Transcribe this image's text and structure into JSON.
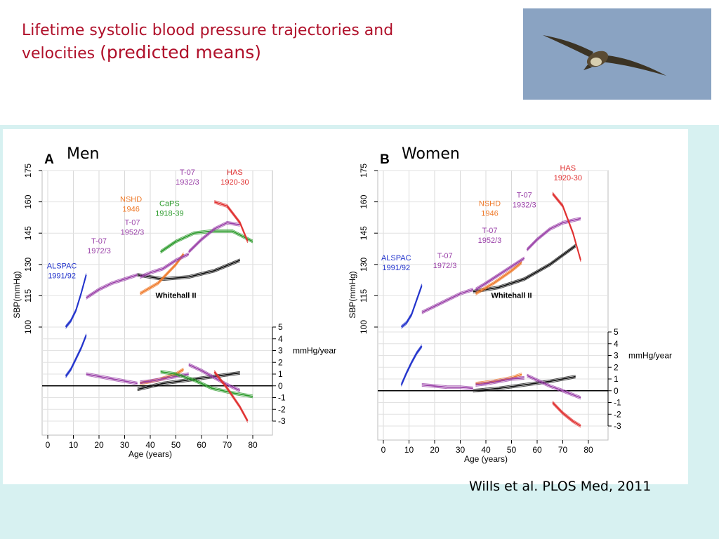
{
  "slide": {
    "title_line1": "Lifetime systolic blood pressure trajectories and",
    "title_line2a": "velocities ",
    "title_line2b": "(predicted means)",
    "header_men": "Men",
    "header_women": "Women",
    "citation": "Wills et al. PLOS Med, 2011",
    "photo_icon": "falcon-in-flight-photo",
    "colors": {
      "title": "#b0102a",
      "band": "#d7f1f1",
      "sky": "#8aa3c2"
    }
  },
  "chart_data": [
    {
      "type": "line",
      "panel_letter": "A",
      "ylabel": "SBP(mmHg)",
      "xlabel": "Age (years)",
      "yticks": [
        "100",
        "115",
        "130",
        "145",
        "160",
        "175"
      ],
      "xticks": [
        "0",
        "10",
        "20",
        "30",
        "40",
        "50",
        "60",
        "70",
        "80"
      ],
      "vel_label": "mmHg/year",
      "vel_ticks": [
        "5",
        "4",
        "3",
        "2",
        "1",
        "0",
        "-1",
        "-2",
        "-3"
      ],
      "xlim": [
        0,
        80
      ],
      "ylim": [
        100,
        175
      ],
      "vlim": [
        -3,
        5
      ],
      "grid": true,
      "whitehall_label": "Whitehall II",
      "series": [
        {
          "name": "ALSPAC",
          "color": "#2233cc",
          "x": [
            7,
            9,
            11,
            13,
            15
          ],
          "sbp": [
            100,
            103,
            108,
            116,
            125
          ],
          "vel": [
            0.8,
            1.4,
            2.3,
            3.2,
            4.3
          ]
        },
        {
          "name": "T-07 1972/3",
          "color": "#9a40a8",
          "x": [
            15,
            20,
            25,
            30,
            35
          ],
          "sbp": [
            114,
            118,
            121,
            123,
            125
          ],
          "vel": [
            1.0,
            0.8,
            0.6,
            0.4,
            0.2
          ]
        },
        {
          "name": "Whitehall II",
          "color": "#111111",
          "x": [
            35,
            45,
            55,
            65,
            75
          ],
          "sbp": [
            125,
            123,
            124,
            127,
            132
          ],
          "vel": [
            -0.3,
            0.2,
            0.5,
            0.8,
            1.1
          ]
        },
        {
          "name": "NSHD 1946",
          "color": "#ef7a2a",
          "x": [
            36,
            43,
            50,
            53
          ],
          "sbp": [
            116,
            121,
            130,
            135
          ],
          "vel": [
            0.2,
            0.5,
            1.0,
            1.4
          ]
        },
        {
          "name": "T-07 1952/3",
          "color": "#9a40a8",
          "x": [
            36,
            40,
            45,
            50,
            55
          ],
          "sbp": [
            124,
            126,
            128,
            132,
            135
          ],
          "vel": [
            0.3,
            0.4,
            0.6,
            0.8,
            1.0
          ]
        },
        {
          "name": "CaPS 1918-39",
          "color": "#2a9a2a",
          "x": [
            44,
            50,
            57,
            64,
            72,
            80
          ],
          "sbp": [
            136,
            141,
            145,
            146,
            146,
            141
          ],
          "vel": [
            1.2,
            1.0,
            0.5,
            -0.2,
            -0.6,
            -0.9
          ]
        },
        {
          "name": "T-07 1932/3",
          "color": "#9a40a8",
          "x": [
            55,
            60,
            65,
            70,
            75
          ],
          "sbp": [
            136,
            142,
            147,
            150,
            149
          ],
          "vel": [
            1.8,
            1.3,
            0.7,
            0.1,
            -0.4
          ]
        },
        {
          "name": "HAS 1920-30",
          "color": "#e03030",
          "x": [
            65,
            70,
            75,
            78
          ],
          "sbp": [
            160,
            158,
            150,
            141
          ],
          "vel": [
            1.2,
            -0.2,
            -1.8,
            -3.0
          ]
        }
      ],
      "labels": [
        {
          "text": [
            "ALSPAC",
            "1991/92"
          ],
          "x": 5.5,
          "sbp": 128,
          "color": "#2233cc"
        },
        {
          "text": [
            "T-07",
            "1972/3"
          ],
          "x": 20,
          "sbp": 140,
          "color": "#9a40a8"
        },
        {
          "text": [
            "NSHD",
            "1946"
          ],
          "x": 32.5,
          "sbp": 160,
          "color": "#ef7a2a"
        },
        {
          "text": [
            "T-07",
            "1952/3"
          ],
          "x": 33,
          "sbp": 149,
          "color": "#9a40a8"
        },
        {
          "text": [
            "CaPS",
            "1918-39"
          ],
          "x": 47.5,
          "sbp": 158,
          "color": "#2a9a2a"
        },
        {
          "text": [
            "T-07",
            "1932/3"
          ],
          "x": 54.5,
          "sbp": 173,
          "color": "#9a40a8"
        },
        {
          "text": [
            "HAS",
            "1920-30"
          ],
          "x": 73,
          "sbp": 173,
          "color": "#e03030"
        }
      ]
    },
    {
      "type": "line",
      "panel_letter": "B",
      "ylabel": "SBP(mmHg)",
      "xlabel": "Age (years)",
      "yticks": [
        "100",
        "115",
        "130",
        "145",
        "160",
        "175"
      ],
      "xticks": [
        "0",
        "10",
        "20",
        "30",
        "40",
        "50",
        "60",
        "70",
        "80"
      ],
      "vel_label": "mmHg/year",
      "vel_ticks": [
        "5",
        "4",
        "3",
        "2",
        "1",
        "0",
        "-1",
        "-2",
        "-3"
      ],
      "xlim": [
        0,
        80
      ],
      "ylim": [
        100,
        175
      ],
      "vlim": [
        -3,
        5
      ],
      "grid": true,
      "whitehall_label": "Whitehall II",
      "series": [
        {
          "name": "ALSPAC",
          "color": "#2233cc",
          "x": [
            7,
            9,
            11,
            13,
            15
          ],
          "sbp": [
            100,
            102,
            106,
            113,
            120
          ],
          "vel": [
            0.5,
            1.5,
            2.4,
            3.2,
            3.8
          ]
        },
        {
          "name": "T-07 1972/3",
          "color": "#9a40a8",
          "x": [
            15,
            20,
            25,
            30,
            35
          ],
          "sbp": [
            107,
            110,
            113,
            116,
            118
          ],
          "vel": [
            0.5,
            0.4,
            0.3,
            0.3,
            0.2
          ]
        },
        {
          "name": "Whitehall II",
          "color": "#111111",
          "x": [
            35,
            45,
            55,
            65,
            75
          ],
          "sbp": [
            117,
            119,
            123,
            130,
            139
          ],
          "vel": [
            0.0,
            0.2,
            0.5,
            0.8,
            1.2
          ]
        },
        {
          "name": "NSHD 1946",
          "color": "#ef7a2a",
          "x": [
            36,
            43,
            50,
            54
          ],
          "sbp": [
            116,
            121,
            127,
            131
          ],
          "vel": [
            0.6,
            0.8,
            1.1,
            1.4
          ]
        },
        {
          "name": "T-07 1952/3",
          "color": "#9a40a8",
          "x": [
            36,
            40,
            45,
            50,
            55
          ],
          "sbp": [
            118,
            121,
            125,
            129,
            133
          ],
          "vel": [
            0.5,
            0.6,
            0.8,
            1.0,
            1.1
          ]
        },
        {
          "name": "T-07 1932/3",
          "color": "#9a40a8",
          "x": [
            56,
            60,
            65,
            70,
            77
          ],
          "sbp": [
            137,
            142,
            147,
            150,
            152
          ],
          "vel": [
            1.3,
            0.9,
            0.4,
            0.0,
            -0.6
          ]
        },
        {
          "name": "HAS 1920-30",
          "color": "#e03030",
          "x": [
            66,
            70,
            74,
            77
          ],
          "sbp": [
            164,
            158,
            145,
            132
          ],
          "vel": [
            -1.0,
            -1.9,
            -2.6,
            -3.0
          ]
        }
      ],
      "labels": [
        {
          "text": [
            "ALSPAC",
            "1991/92"
          ],
          "x": 5,
          "sbp": 132,
          "color": "#2233cc"
        },
        {
          "text": [
            "T-07",
            "1972/3"
          ],
          "x": 24,
          "sbp": 133,
          "color": "#9a40a8"
        },
        {
          "text": [
            "NSHD",
            "1946"
          ],
          "x": 41.5,
          "sbp": 158,
          "color": "#ef7a2a"
        },
        {
          "text": [
            "T-07",
            "1952/3"
          ],
          "x": 41.5,
          "sbp": 145,
          "color": "#9a40a8"
        },
        {
          "text": [
            "T-07",
            "1932/3"
          ],
          "x": 55,
          "sbp": 162,
          "color": "#9a40a8"
        },
        {
          "text": [
            "HAS",
            "1920-30"
          ],
          "x": 72,
          "sbp": 175,
          "color": "#e03030"
        }
      ]
    }
  ]
}
